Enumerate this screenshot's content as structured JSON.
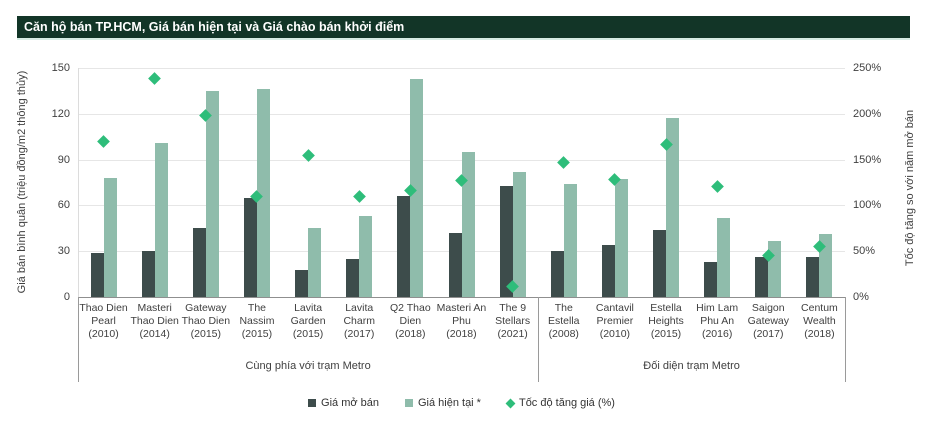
{
  "header": {
    "title": "Căn hộ bán TP.HCM, Giá bán hiện tại và Giá chào bán khởi điểm",
    "bar_color": "#123527"
  },
  "chart_data": {
    "type": "bar",
    "title": "Căn hộ bán TP.HCM, Giá bán hiện tại và Giá chào bán khởi điểm",
    "left_axis": {
      "label": "Giá bán bình quân (triệu đồng/m2 thông thủy)",
      "ticks": [
        0,
        30,
        60,
        90,
        120,
        150
      ],
      "range": [
        0,
        150
      ],
      "grid": true
    },
    "right_axis": {
      "label": "Tốc độ tăng so với năm mở bán",
      "ticks": [
        "0%",
        "50%",
        "100%",
        "150%",
        "200%",
        "250%"
      ],
      "tick_values": [
        0,
        50,
        100,
        150,
        200,
        250
      ],
      "range": [
        0,
        250
      ]
    },
    "categories": [
      {
        "name": "Thao Dien Pearl",
        "year": "(2010)",
        "group": 0
      },
      {
        "name": "Masteri Thao Dien",
        "year": "(2014)",
        "group": 0
      },
      {
        "name": "Gateway Thao Dien",
        "year": "(2015)",
        "group": 0
      },
      {
        "name": "The Nassim",
        "year": "(2015)",
        "group": 0
      },
      {
        "name": "Lavita Garden",
        "year": "(2015)",
        "group": 0
      },
      {
        "name": "Lavita Charm",
        "year": "(2017)",
        "group": 0
      },
      {
        "name": "Q2 Thao Dien",
        "year": "(2018)",
        "group": 0
      },
      {
        "name": "Masteri An Phu",
        "year": "(2018)",
        "group": 0
      },
      {
        "name": "The 9 Stellars",
        "year": "(2021)",
        "group": 0
      },
      {
        "name": "The Estella",
        "year": "(2008)",
        "group": 1
      },
      {
        "name": "Cantavil Premier",
        "year": "(2010)",
        "group": 1
      },
      {
        "name": "Estella Heights",
        "year": "(2015)",
        "group": 1
      },
      {
        "name": "Him Lam Phu An",
        "year": "(2016)",
        "group": 1
      },
      {
        "name": "Saigon Gateway",
        "year": "(2017)",
        "group": 1
      },
      {
        "name": "Centum Wealth",
        "year": "(2018)",
        "group": 1
      }
    ],
    "series": [
      {
        "name": "Giá mở bán",
        "kind": "bar",
        "axis": "left",
        "color": "#3d4c4b",
        "values": [
          29,
          30,
          45,
          65,
          18,
          25,
          66,
          42,
          73,
          30,
          34,
          44,
          23,
          26,
          26
        ]
      },
      {
        "name": "Giá hiện tại *",
        "kind": "bar",
        "axis": "left",
        "color": "#8fbcab",
        "values": [
          78,
          101,
          135,
          136,
          45,
          53,
          143,
          95,
          82,
          74,
          77,
          117,
          52,
          37,
          41
        ]
      },
      {
        "name": "Tốc độ tăng giá (%)",
        "kind": "diamond",
        "axis": "right",
        "color": "#2ebd7a",
        "values": [
          170,
          238,
          198,
          110,
          155,
          110,
          116,
          127,
          11,
          147,
          128,
          166,
          121,
          45,
          55
        ]
      }
    ],
    "groups": [
      "Cùng phía với trạm Metro",
      "Đối diện trạm Metro"
    ],
    "legend_position": "bottom"
  },
  "colors": {
    "grid": "#e6e6e6",
    "axis": "#8f8f8f",
    "text": "#404040"
  }
}
